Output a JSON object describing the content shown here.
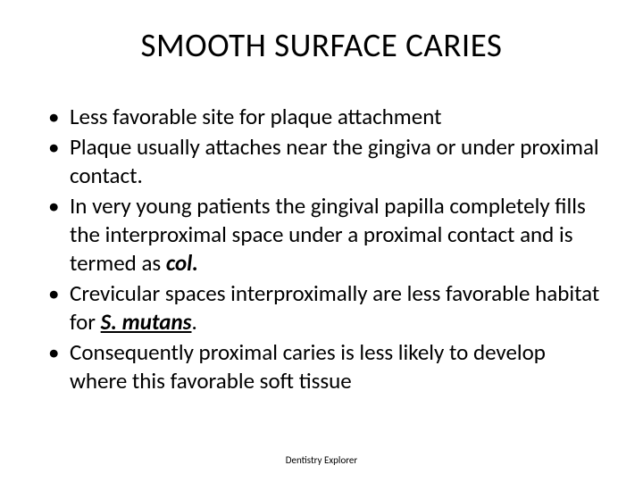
{
  "title": "SMOOTH SURFACE CARIES",
  "bullets": [
    {
      "text_pre": "Less favorable site for plaque attachment",
      "em": "",
      "em_class": "",
      "text_post": ""
    },
    {
      "text_pre": "Plaque usually attaches near the gingiva or under proximal contact.",
      "em": "",
      "em_class": "",
      "text_post": ""
    },
    {
      "text_pre": "In very young patients the gingival papilla completely fills the interproximal space under a proximal contact and is termed as ",
      "em": "col.",
      "em_class": "bold-italic",
      "text_post": ""
    },
    {
      "text_pre": "Crevicular spaces interproximally are less favorable habitat for ",
      "em": "S. mutans",
      "em_class": "bold-italic-underline",
      "text_post": "."
    },
    {
      "text_pre": "Consequently proximal caries is less likely to develop where this favorable soft tissue",
      "em": "",
      "em_class": "",
      "text_post": ""
    }
  ],
  "footer": "Dentistry Explorer",
  "colors": {
    "background": "#ffffff",
    "text": "#000000"
  },
  "fonts": {
    "title_size": 37,
    "body_size": 25,
    "footer_size": 11
  }
}
